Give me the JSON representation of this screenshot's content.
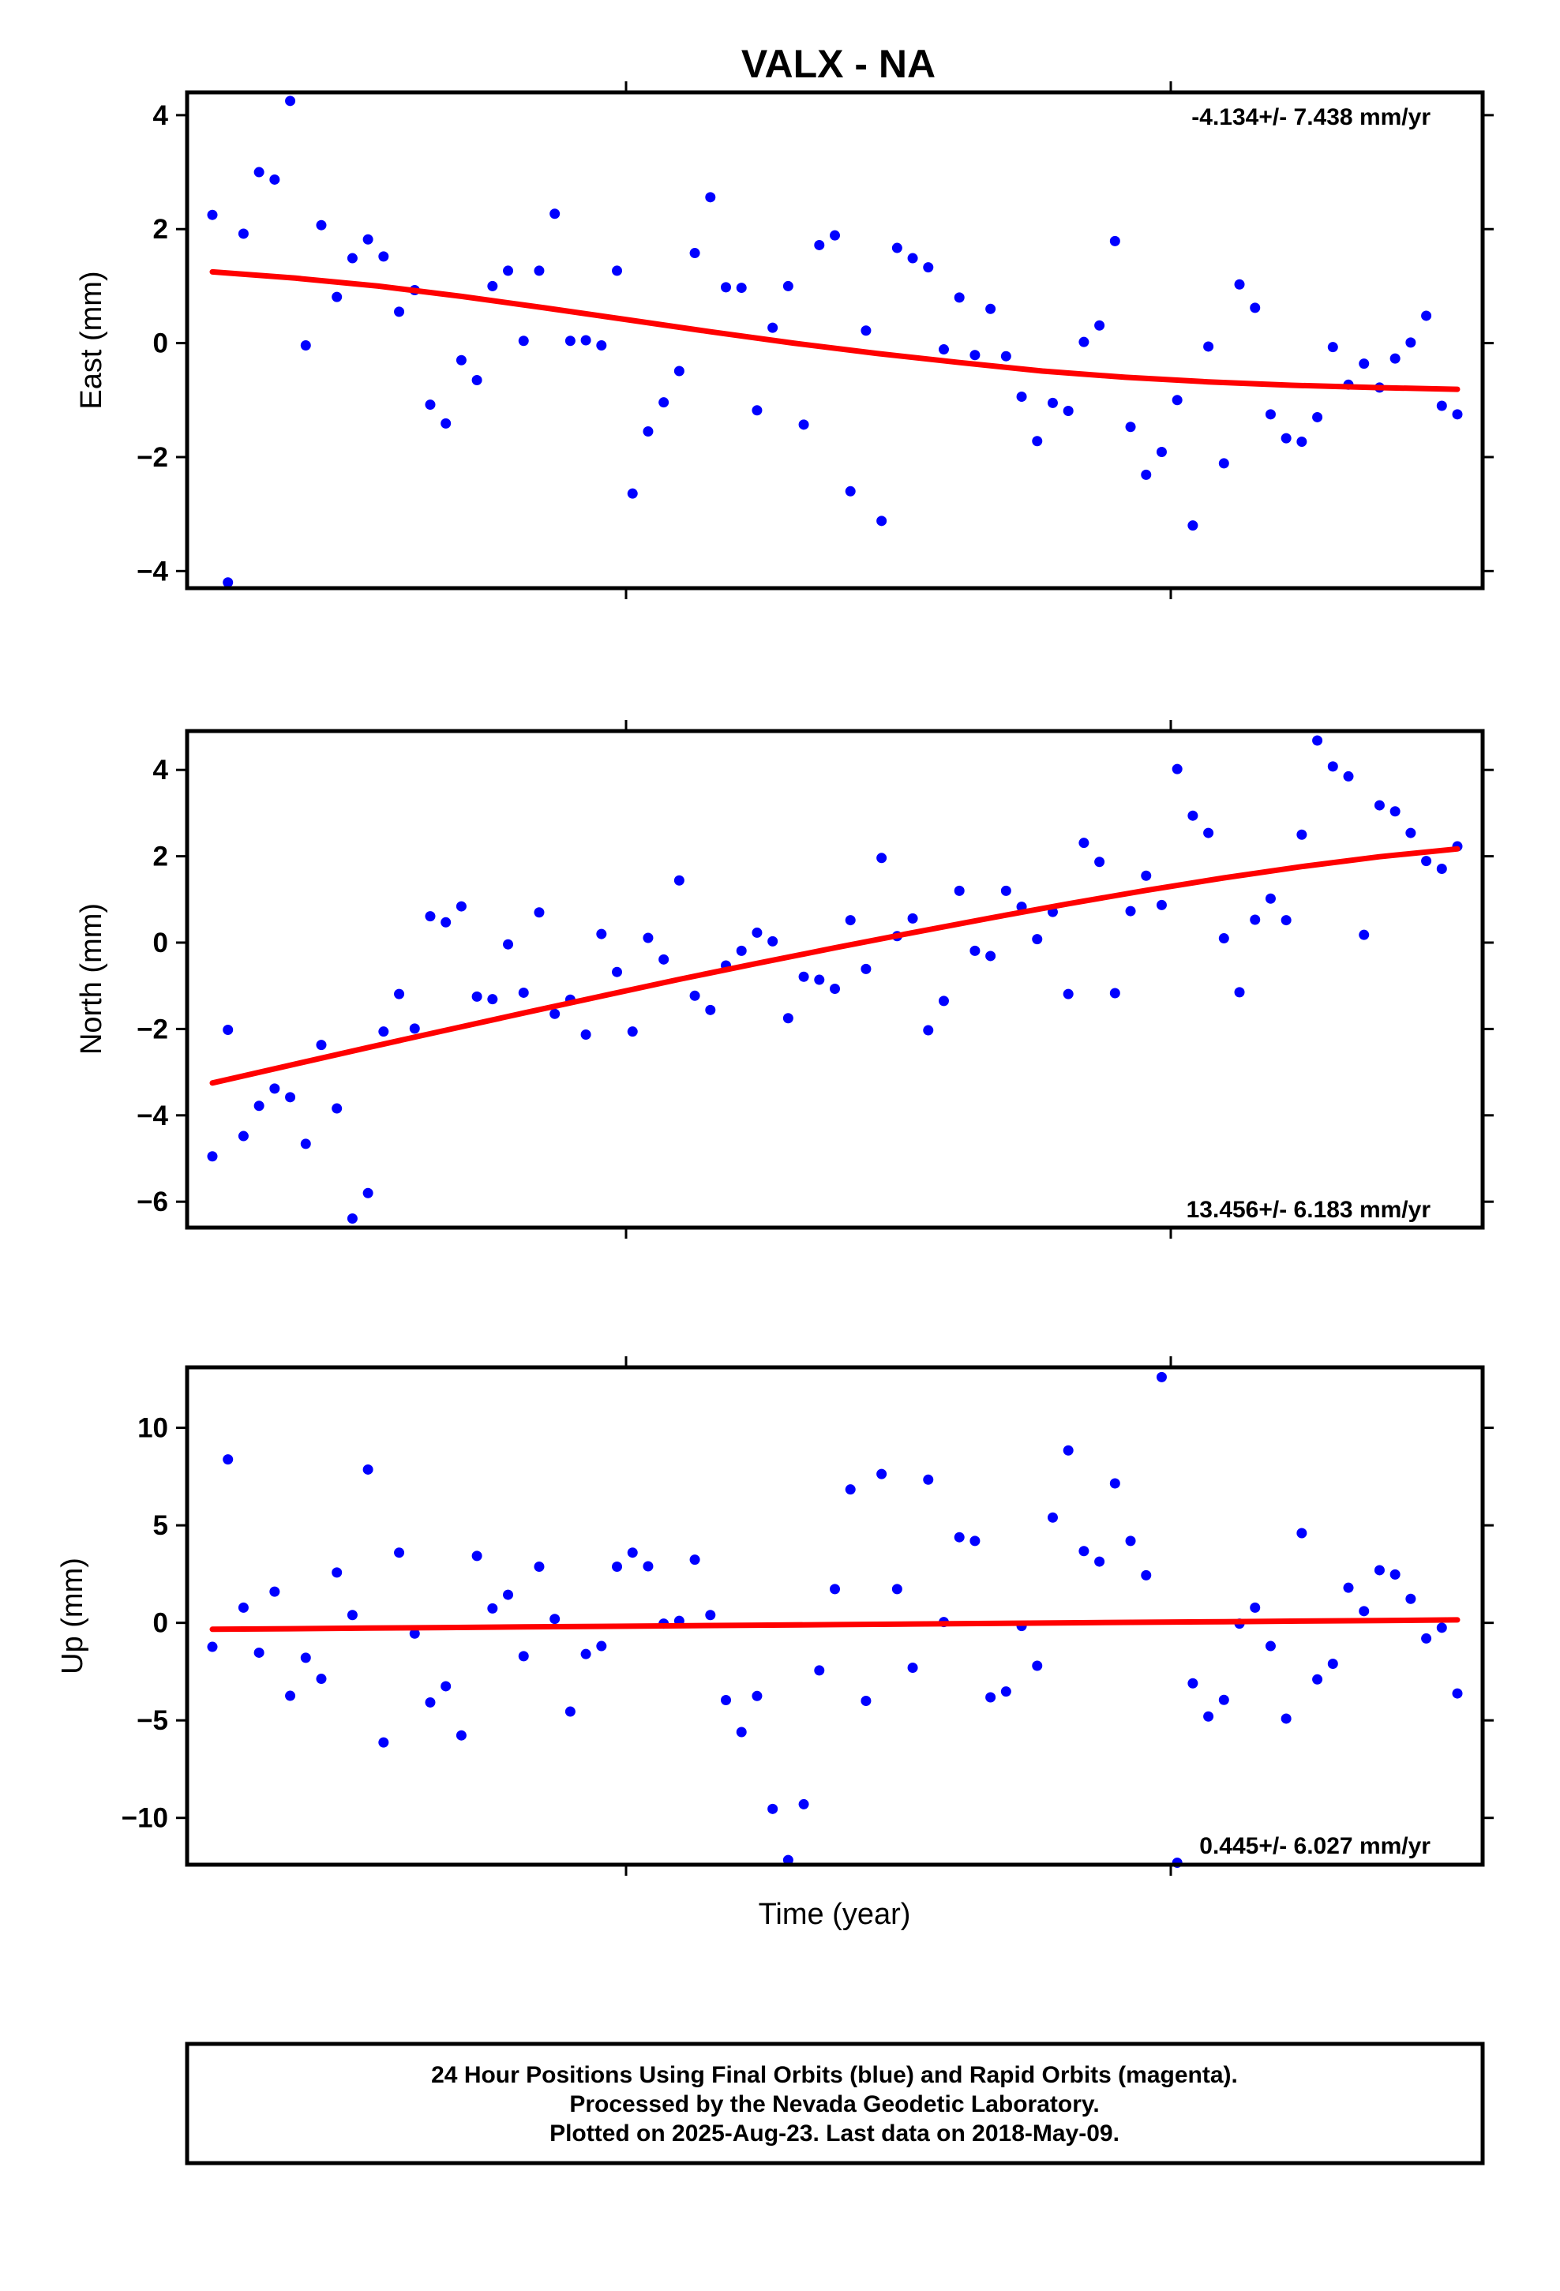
{
  "title": "VALX - NA",
  "xlabel": "Time (year)",
  "colors": {
    "points": "#0000ff",
    "fit": "#ff0000",
    "frame": "#000000"
  },
  "footer": {
    "line1": "24 Hour Positions Using Final Orbits (blue) and Rapid Orbits (magenta).",
    "line2": "Processed by the Nevada Geodetic Laboratory.",
    "line3": "Plotted on 2025-Aug-23. Last data on 2018-May-09."
  },
  "chart_data": [
    {
      "type": "scatter",
      "ylabel": "East (mm)",
      "rate": "-4.134+/- 7.438 mm/yr",
      "rate_position": "top-right",
      "ylim": [
        -4.3,
        4.4
      ],
      "yticks": [
        4,
        2,
        0,
        -2,
        -4
      ],
      "ytick_labels": [
        "4",
        "2",
        "0",
        "−2",
        "−4"
      ],
      "grid": false,
      "series": [
        {
          "kind": "points",
          "values": [
            2.25,
            -4.2,
            1.92,
            3.0,
            2.87,
            4.25,
            -0.04,
            2.07,
            0.81,
            1.49,
            1.82,
            1.52,
            0.55,
            0.93,
            -1.08,
            -1.41,
            -0.3,
            -0.65,
            1.0,
            1.27,
            0.04,
            1.27,
            2.27,
            0.04,
            0.05,
            -0.04,
            1.27,
            -2.64,
            -1.55,
            -1.04,
            -0.49,
            1.58,
            2.56,
            0.98,
            0.97,
            -1.18,
            0.27,
            1.0,
            -1.43,
            1.72,
            1.89,
            -2.6,
            0.22,
            -3.12,
            1.67,
            1.49,
            1.33,
            -0.11,
            0.8,
            -0.21,
            0.6,
            -0.23,
            -0.94,
            -1.72,
            -1.05,
            -1.19,
            0.02,
            0.31,
            1.79,
            -1.47,
            -2.31,
            -1.91,
            -1.0,
            -3.2,
            -0.06,
            -2.11,
            1.03,
            0.62,
            -1.25,
            -1.67,
            -1.73,
            -1.3,
            -0.07,
            -0.73,
            -0.36,
            -0.78,
            -0.27,
            0.01,
            0.48,
            -1.1,
            -1.25
          ]
        },
        {
          "kind": "fit",
          "values": [
            1.25,
            1.14,
            1.0,
            0.82,
            0.62,
            0.41,
            0.2,
            0.0,
            -0.18,
            -0.34,
            -0.49,
            -0.6,
            -0.68,
            -0.74,
            -0.78,
            -0.81
          ]
        }
      ]
    },
    {
      "type": "scatter",
      "ylabel": "North (mm)",
      "rate": "13.456+/- 6.183 mm/yr",
      "rate_position": "bottom-right",
      "ylim": [
        -6.6,
        4.9
      ],
      "yticks": [
        4,
        2,
        0,
        -2,
        -4,
        -6
      ],
      "ytick_labels": [
        "4",
        "2",
        "0",
        "−2",
        "−4",
        "−6"
      ],
      "grid": false,
      "series": [
        {
          "kind": "points",
          "values": [
            -4.95,
            -2.02,
            -4.48,
            -3.78,
            -3.38,
            -3.58,
            -4.66,
            -2.37,
            -3.84,
            -6.39,
            -5.8,
            -2.06,
            -1.19,
            -1.99,
            0.61,
            0.47,
            0.84,
            -1.25,
            -1.31,
            -0.04,
            -1.16,
            0.7,
            -1.65,
            -1.32,
            -2.13,
            0.2,
            -0.68,
            -2.06,
            0.11,
            -0.39,
            1.44,
            -1.23,
            -1.56,
            -0.53,
            -0.19,
            0.23,
            0.03,
            -1.75,
            -0.79,
            -0.86,
            -1.07,
            0.52,
            -0.61,
            1.96,
            0.15,
            0.56,
            -2.03,
            -1.35,
            1.2,
            -0.19,
            -0.31,
            1.2,
            0.83,
            0.08,
            0.71,
            -1.19,
            2.31,
            1.87,
            -1.17,
            0.73,
            1.55,
            0.87,
            4.02,
            2.94,
            2.54,
            0.1,
            -1.15,
            0.53,
            1.02,
            0.52,
            2.5,
            4.68,
            4.08,
            3.85,
            0.18,
            3.18,
            3.04,
            2.54,
            1.89,
            1.71,
            2.23
          ]
        },
        {
          "kind": "fit",
          "values": [
            -3.25,
            -2.84,
            -2.43,
            -2.03,
            -1.63,
            -1.24,
            -0.85,
            -0.48,
            -0.12,
            0.23,
            0.57,
            0.9,
            1.21,
            1.5,
            1.76,
            1.99,
            2.17
          ]
        }
      ]
    },
    {
      "type": "scatter",
      "ylabel": "Up (mm)",
      "rate": "0.445+/- 6.027 mm/yr",
      "rate_position": "bottom-right",
      "ylim": [
        -12.4,
        13.1
      ],
      "yticks": [
        10,
        5,
        0,
        -5,
        -10
      ],
      "ytick_labels": [
        "10",
        "5",
        "0",
        "−5",
        "−10"
      ],
      "grid": false,
      "series": [
        {
          "kind": "points",
          "values": [
            -1.23,
            8.38,
            0.78,
            -1.53,
            1.6,
            -3.74,
            -1.79,
            -2.87,
            2.58,
            0.4,
            7.86,
            -6.13,
            3.6,
            -0.55,
            -4.08,
            -3.25,
            -5.77,
            3.43,
            0.74,
            1.44,
            -1.71,
            2.88,
            0.2,
            -4.55,
            -1.6,
            -1.19,
            2.88,
            3.6,
            2.9,
            -0.04,
            0.1,
            3.24,
            0.4,
            -3.96,
            -5.6,
            -3.75,
            -9.54,
            -12.16,
            -9.3,
            -2.44,
            1.73,
            6.84,
            -4.0,
            7.63,
            1.73,
            -2.3,
            7.34,
            0.04,
            4.39,
            4.2,
            -3.82,
            -3.52,
            -0.16,
            -2.2,
            5.4,
            8.84,
            3.68,
            3.14,
            7.15,
            4.2,
            2.44,
            12.6,
            -12.3,
            -3.1,
            -4.8,
            -3.95,
            -0.04,
            0.78,
            -1.19,
            -4.91,
            4.6,
            -2.9,
            -2.1,
            1.8,
            0.6,
            2.7,
            2.48,
            1.23,
            -0.8,
            -0.25,
            -3.62
          ]
        },
        {
          "kind": "fit",
          "values": [
            -0.33,
            -0.3,
            -0.27,
            -0.24,
            -0.21,
            -0.18,
            -0.15,
            -0.12,
            -0.09,
            -0.06,
            -0.03,
            0.0,
            0.03,
            0.06,
            0.09,
            0.12,
            0.15
          ]
        }
      ]
    }
  ]
}
